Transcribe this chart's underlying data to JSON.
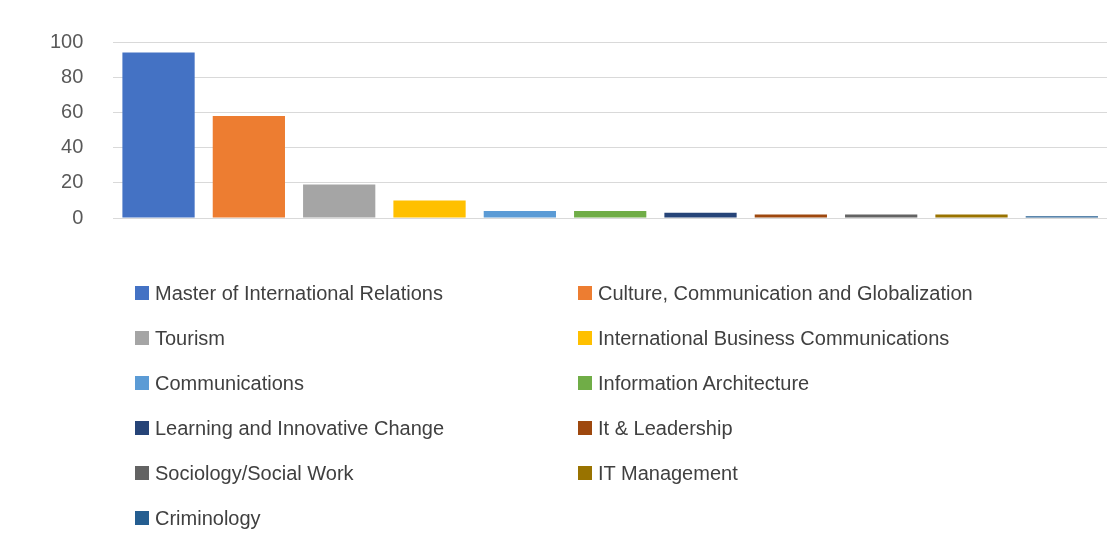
{
  "chart_data": {
    "type": "bar",
    "categories": [
      null,
      null,
      null,
      null,
      null,
      null,
      null,
      null,
      null,
      null,
      null
    ],
    "series": [
      {
        "name": "Master of International Relations",
        "color": "#4472c4",
        "values": [
          94,
          null,
          null,
          null,
          null,
          null,
          null,
          null,
          null,
          null,
          null
        ]
      },
      {
        "name": "Culture, Communication and Globalization",
        "color": "#ed7d31",
        "values": [
          null,
          58,
          null,
          null,
          null,
          null,
          null,
          null,
          null,
          null,
          null
        ]
      },
      {
        "name": "Tourism",
        "color": "#a5a5a5",
        "values": [
          null,
          null,
          19,
          null,
          null,
          null,
          null,
          null,
          null,
          null,
          null
        ]
      },
      {
        "name": "International Business Communications",
        "color": "#ffc000",
        "values": [
          null,
          null,
          null,
          10,
          null,
          null,
          null,
          null,
          null,
          null,
          null
        ]
      },
      {
        "name": "Communications",
        "color": "#5b9bd5",
        "values": [
          null,
          null,
          null,
          null,
          4,
          null,
          null,
          null,
          null,
          null,
          null
        ]
      },
      {
        "name": "Information Architecture",
        "color": "#70ad47",
        "values": [
          null,
          null,
          null,
          null,
          null,
          4,
          null,
          null,
          null,
          null,
          null
        ]
      },
      {
        "name": "Learning and Innovative Change",
        "color": "#264478",
        "values": [
          null,
          null,
          null,
          null,
          null,
          null,
          3,
          null,
          null,
          null,
          null
        ]
      },
      {
        "name": "It & Leadership",
        "color": "#9e480e",
        "values": [
          null,
          null,
          null,
          null,
          null,
          null,
          null,
          2,
          null,
          null,
          null
        ]
      },
      {
        "name": "Sociology/Social Work",
        "color": "#636363",
        "values": [
          null,
          null,
          null,
          null,
          null,
          null,
          null,
          null,
          2,
          null,
          null
        ]
      },
      {
        "name": "IT Management",
        "color": "#997300",
        "values": [
          null,
          null,
          null,
          null,
          null,
          null,
          null,
          null,
          null,
          2,
          null
        ]
      },
      {
        "name": "Criminology",
        "color": "#255e91",
        "values": [
          null,
          null,
          null,
          null,
          null,
          null,
          null,
          null,
          null,
          null,
          1
        ]
      }
    ],
    "ylim": [
      0,
      100
    ],
    "yticks": [
      0,
      20,
      40,
      60,
      80,
      100
    ],
    "grid": "y",
    "legend": "bottom"
  }
}
